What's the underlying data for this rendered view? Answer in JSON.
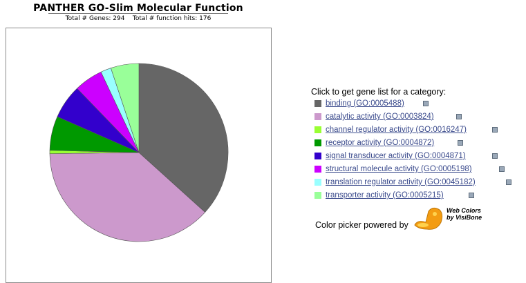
{
  "header": {
    "title": "PANTHER GO-Slim Molecular Function",
    "subtitle": "Total # Genes: 294    Total # function hits: 176"
  },
  "legend": {
    "title": "Click to get gene list for a category:",
    "items": [
      {
        "label": "binding (GO:0005488)",
        "color": "#666666"
      },
      {
        "label": "catalytic activity (GO:0003824)",
        "color": "#cc99cc"
      },
      {
        "label": "channel regulator activity (GO:0016247)",
        "color": "#99ff33"
      },
      {
        "label": "receptor activity (GO:0004872)",
        "color": "#009900"
      },
      {
        "label": "signal transducer activity (GO:0004871)",
        "color": "#3300cc"
      },
      {
        "label": "structural molecule activity (GO:0005198)",
        "color": "#cc00ff"
      },
      {
        "label": "translation regulator activity (GO:0045182)",
        "color": "#99ffff"
      },
      {
        "label": "transporter activity (GO:0005215)",
        "color": "#99ff99"
      }
    ],
    "icon_name": "popup-window-icon"
  },
  "picker": {
    "text": "Color picker powered by",
    "logo_text": "Web Colors by VisiBone",
    "logo_color": "#f39c12"
  },
  "chart_data": {
    "type": "pie",
    "title": "PANTHER GO-Slim Molecular Function",
    "start_angle_deg": 0,
    "direction": "clockwise",
    "slices": [
      {
        "label": "binding (GO:0005488)",
        "value": 36.7,
        "color": "#666666"
      },
      {
        "label": "catalytic activity (GO:0003824)",
        "value": 38.1,
        "color": "#cc99cc"
      },
      {
        "label": "channel regulator activity (GO:0016247)",
        "value": 0.6,
        "color": "#99ff33"
      },
      {
        "label": "receptor activity (GO:0004872)",
        "value": 6.2,
        "color": "#009900"
      },
      {
        "label": "signal transducer activity (GO:0004871)",
        "value": 6.2,
        "color": "#3300cc"
      },
      {
        "label": "structural molecule activity (GO:0005198)",
        "value": 5.2,
        "color": "#cc00ff"
      },
      {
        "label": "translation regulator activity (GO:0045182)",
        "value": 1.9,
        "color": "#99ffff"
      },
      {
        "label": "transporter activity (GO:0005215)",
        "value": 5.1,
        "color": "#99ff99"
      }
    ]
  }
}
